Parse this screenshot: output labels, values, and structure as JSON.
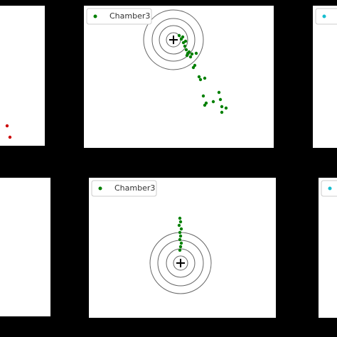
{
  "chart_data": [
    {
      "type": "scatter",
      "xlim": [
        0,
        63
      ],
      "ylim": [
        0,
        197
      ],
      "legend": false,
      "series": [
        {
          "color": "#cc0000",
          "x": [
            10,
            14
          ],
          "y": [
            28,
            12
          ]
        }
      ]
    },
    {
      "type": "scatter",
      "xlim": [
        0,
        267
      ],
      "ylim": [
        0,
        200
      ],
      "legend": true,
      "target": {
        "x": 126,
        "y": 152,
        "radii": [
          10,
          20,
          30,
          42
        ]
      },
      "series": [
        {
          "name": "Chamber3",
          "color": "#008000",
          "x": [
            134,
            137,
            140,
            142,
            144,
            146,
            139,
            143,
            145,
            148,
            150,
            152,
            154,
            156,
            158,
            162,
            164,
            170,
            168,
            172,
            170,
            182,
            190,
            192,
            194,
            200,
            194
          ],
          "y": [
            158,
            153,
            148,
            143,
            138,
            133,
            156,
            150,
            130,
            135,
            128,
            132,
            113,
            116,
            133,
            100,
            96,
            98,
            73,
            63,
            60,
            65,
            78,
            68,
            58,
            56,
            50
          ]
        }
      ]
    },
    {
      "type": "scatter",
      "xlim": [
        0,
        34
      ],
      "ylim": [
        0,
        200
      ],
      "legend": true,
      "series": [
        {
          "color": "#17becf",
          "x": [],
          "y": []
        }
      ]
    },
    {
      "type": "scatter",
      "xlim": [
        0,
        71
      ],
      "ylim": [
        0,
        195
      ],
      "legend": false,
      "series": []
    },
    {
      "type": "scatter",
      "xlim": [
        0,
        263
      ],
      "ylim": [
        0,
        197
      ],
      "legend": true,
      "target": {
        "x": 129,
        "y": 77,
        "radii": [
          10,
          20,
          32,
          43
        ]
      },
      "series": [
        {
          "name": "Chamber3",
          "color": "#008000",
          "x": [
            128,
            129,
            127,
            130,
            128,
            129,
            128,
            130,
            129,
            128
          ],
          "y": [
            140,
            135,
            130,
            125,
            120,
            115,
            110,
            105,
            100,
            95
          ]
        }
      ]
    },
    {
      "type": "scatter",
      "xlim": [
        0,
        26
      ],
      "ylim": [
        0,
        197
      ],
      "legend": true,
      "series": [
        {
          "color": "#17becf",
          "x": [],
          "y": []
        }
      ]
    }
  ]
}
